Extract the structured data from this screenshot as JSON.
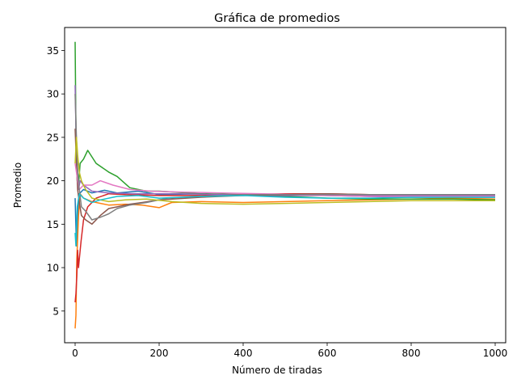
{
  "chart_data": {
    "type": "line",
    "title": "Gráfica de promedios",
    "xlabel": "Número de tiradas",
    "ylabel": "Promedio",
    "xlim": [
      -25,
      1025
    ],
    "ylim": [
      1.35,
      37.65
    ],
    "xticks": [
      0,
      200,
      400,
      600,
      800,
      1000
    ],
    "yticks": [
      5,
      10,
      15,
      20,
      25,
      30,
      35
    ],
    "grid": false,
    "legend": "none",
    "series": [
      {
        "color": "#1f77b4",
        "points": [
          [
            0,
            18
          ],
          [
            3,
            12.5
          ],
          [
            6,
            16
          ],
          [
            10,
            18.5
          ],
          [
            20,
            19
          ],
          [
            40,
            18.6
          ],
          [
            70,
            18.9
          ],
          [
            100,
            18.6
          ],
          [
            150,
            18.8
          ],
          [
            200,
            18.4
          ],
          [
            300,
            18.5
          ],
          [
            400,
            18.3
          ],
          [
            500,
            18.4
          ],
          [
            600,
            18.3
          ],
          [
            700,
            18.2
          ],
          [
            800,
            18.1
          ],
          [
            900,
            18.1
          ],
          [
            1000,
            18.1
          ]
        ]
      },
      {
        "color": "#ff7f0e",
        "points": [
          [
            0,
            3
          ],
          [
            2,
            4.5
          ],
          [
            4,
            11
          ],
          [
            8,
            16
          ],
          [
            12,
            18.5
          ],
          [
            20,
            18
          ],
          [
            40,
            17.6
          ],
          [
            80,
            17.2
          ],
          [
            120,
            17.3
          ],
          [
            160,
            17.2
          ],
          [
            200,
            16.9
          ],
          [
            230,
            17.5
          ],
          [
            300,
            17.6
          ],
          [
            400,
            17.5
          ],
          [
            500,
            17.6
          ],
          [
            600,
            17.7
          ],
          [
            700,
            17.8
          ],
          [
            800,
            17.9
          ],
          [
            900,
            18
          ],
          [
            1000,
            17.9
          ]
        ]
      },
      {
        "color": "#2ca02c",
        "points": [
          [
            0,
            36
          ],
          [
            2,
            26
          ],
          [
            5,
            20
          ],
          [
            8,
            19.5
          ],
          [
            12,
            22
          ],
          [
            20,
            22.5
          ],
          [
            30,
            23.5
          ],
          [
            50,
            22
          ],
          [
            80,
            21
          ],
          [
            100,
            20.5
          ],
          [
            130,
            19.2
          ],
          [
            170,
            18.8
          ],
          [
            200,
            18.8
          ],
          [
            300,
            18.5
          ],
          [
            400,
            18.4
          ],
          [
            500,
            18.2
          ],
          [
            600,
            18
          ],
          [
            700,
            17.9
          ],
          [
            800,
            17.9
          ],
          [
            900,
            17.9
          ],
          [
            1000,
            17.8
          ]
        ]
      },
      {
        "color": "#d62728",
        "points": [
          [
            0,
            6
          ],
          [
            2,
            7
          ],
          [
            4,
            9
          ],
          [
            6,
            12
          ],
          [
            8,
            10
          ],
          [
            10,
            11
          ],
          [
            14,
            13
          ],
          [
            20,
            15.5
          ],
          [
            30,
            17
          ],
          [
            50,
            18
          ],
          [
            80,
            18.5
          ],
          [
            120,
            18.4
          ],
          [
            200,
            18.3
          ],
          [
            300,
            18.3
          ],
          [
            400,
            18.4
          ],
          [
            500,
            18.5
          ],
          [
            600,
            18.5
          ],
          [
            700,
            18.4
          ],
          [
            800,
            18.4
          ],
          [
            900,
            18.4
          ],
          [
            1000,
            18.3
          ]
        ]
      },
      {
        "color": "#9467bd",
        "points": [
          [
            0,
            31
          ],
          [
            2,
            26
          ],
          [
            5,
            22
          ],
          [
            8,
            19
          ],
          [
            12,
            20
          ],
          [
            20,
            19.5
          ],
          [
            40,
            18.8
          ],
          [
            80,
            18.6
          ],
          [
            150,
            18.5
          ],
          [
            250,
            18.5
          ],
          [
            350,
            18.4
          ],
          [
            500,
            18.3
          ],
          [
            650,
            18.3
          ],
          [
            800,
            18.3
          ],
          [
            1000,
            18.3
          ]
        ]
      },
      {
        "color": "#8c564b",
        "points": [
          [
            0,
            26
          ],
          [
            3,
            22
          ],
          [
            6,
            19
          ],
          [
            10,
            17.5
          ],
          [
            15,
            16
          ],
          [
            25,
            15.5
          ],
          [
            40,
            15
          ],
          [
            60,
            16
          ],
          [
            80,
            16.8
          ],
          [
            100,
            17
          ],
          [
            130,
            17.3
          ],
          [
            160,
            17.5
          ],
          [
            200,
            17.8
          ],
          [
            300,
            18.1
          ],
          [
            400,
            18.3
          ],
          [
            500,
            18.4
          ],
          [
            600,
            18.5
          ],
          [
            700,
            18.4
          ],
          [
            800,
            18.4
          ],
          [
            900,
            18.4
          ],
          [
            1000,
            18.4
          ]
        ]
      },
      {
        "color": "#e377c2",
        "points": [
          [
            0,
            22
          ],
          [
            3,
            21
          ],
          [
            6,
            20
          ],
          [
            10,
            19
          ],
          [
            20,
            19.5
          ],
          [
            40,
            19.5
          ],
          [
            60,
            20
          ],
          [
            90,
            19.5
          ],
          [
            130,
            19
          ],
          [
            180,
            18.8
          ],
          [
            250,
            18.7
          ],
          [
            350,
            18.6
          ],
          [
            450,
            18.5
          ],
          [
            600,
            18.3
          ],
          [
            700,
            18.2
          ],
          [
            800,
            18.2
          ],
          [
            900,
            18.2
          ],
          [
            1000,
            18.2
          ]
        ]
      },
      {
        "color": "#7f7f7f",
        "points": [
          [
            0,
            30
          ],
          [
            3,
            25
          ],
          [
            6,
            21
          ],
          [
            10,
            19
          ],
          [
            15,
            17
          ],
          [
            25,
            16.5
          ],
          [
            40,
            15.5
          ],
          [
            60,
            15.8
          ],
          [
            80,
            16.2
          ],
          [
            100,
            16.8
          ],
          [
            130,
            17.2
          ],
          [
            170,
            17.5
          ],
          [
            220,
            18
          ],
          [
            300,
            18.2
          ],
          [
            400,
            18.4
          ],
          [
            500,
            18.4
          ],
          [
            600,
            18.4
          ],
          [
            700,
            18.4
          ],
          [
            800,
            18.4
          ],
          [
            900,
            18.4
          ],
          [
            1000,
            18.4
          ]
        ]
      },
      {
        "color": "#bcbd22",
        "points": [
          [
            0,
            22
          ],
          [
            3,
            25
          ],
          [
            6,
            23
          ],
          [
            10,
            21
          ],
          [
            15,
            20
          ],
          [
            25,
            19
          ],
          [
            40,
            18
          ],
          [
            60,
            17.8
          ],
          [
            80,
            17.6
          ],
          [
            120,
            17.8
          ],
          [
            170,
            17.9
          ],
          [
            230,
            17.6
          ],
          [
            300,
            17.4
          ],
          [
            400,
            17.3
          ],
          [
            500,
            17.4
          ],
          [
            600,
            17.5
          ],
          [
            700,
            17.6
          ],
          [
            800,
            17.7
          ],
          [
            900,
            17.7
          ],
          [
            1000,
            17.7
          ]
        ]
      },
      {
        "color": "#17becf",
        "points": [
          [
            0,
            14
          ],
          [
            2,
            12.5
          ],
          [
            5,
            17
          ],
          [
            10,
            18.5
          ],
          [
            20,
            18
          ],
          [
            40,
            17.5
          ],
          [
            60,
            17.8
          ],
          [
            100,
            18.2
          ],
          [
            150,
            18.3
          ],
          [
            200,
            18
          ],
          [
            300,
            18.2
          ],
          [
            400,
            18.3
          ],
          [
            500,
            18.1
          ],
          [
            600,
            18
          ],
          [
            700,
            18
          ],
          [
            800,
            18.1
          ],
          [
            900,
            18.1
          ],
          [
            1000,
            18.1
          ]
        ]
      }
    ]
  }
}
